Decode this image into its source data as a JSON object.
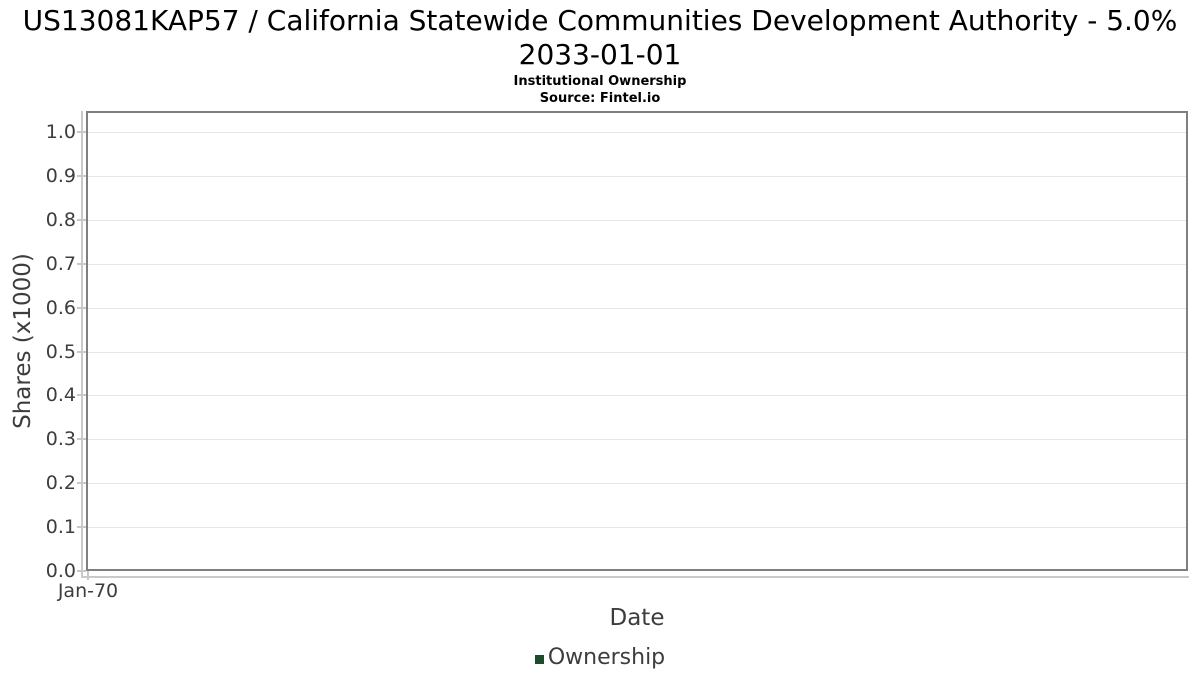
{
  "header": {
    "title_line1": "US13081KAP57 / California Statewide Communities Development Authority - 5.0%",
    "title_line2": "2033-01-01",
    "subtitle": "Institutional Ownership",
    "source": "Source: Fintel.io"
  },
  "chart_data": {
    "type": "line",
    "title": "US13081KAP57 / California Statewide Communities Development Authority - 5.0% 2033-01-01",
    "subtitle": "Institutional Ownership",
    "source": "Source: Fintel.io",
    "xlabel": "Date",
    "ylabel": "Shares (x1000)",
    "x_tick_labels": [
      "Jan-70"
    ],
    "y_tick_labels": [
      "0.0",
      "0.1",
      "0.2",
      "0.3",
      "0.4",
      "0.5",
      "0.6",
      "0.7",
      "0.8",
      "0.9",
      "1.0"
    ],
    "y_tick_values": [
      0.0,
      0.1,
      0.2,
      0.3,
      0.4,
      0.5,
      0.6,
      0.7,
      0.8,
      0.9,
      1.0
    ],
    "ylim": [
      0.0,
      1.048
    ],
    "grid": "horizontal-only",
    "legend_position": "bottom-center",
    "series": [
      {
        "name": "Ownership",
        "color": "#1c4c2a",
        "x": [],
        "values": []
      }
    ]
  },
  "colors": {
    "plot_border": "#7f7f7f",
    "gridline": "#e7e7e7",
    "axis_line": "#c9c9c9",
    "tick_text": "#3d3d3d",
    "title_text": "#000000",
    "legend_swatch": "#1c4c2a"
  }
}
